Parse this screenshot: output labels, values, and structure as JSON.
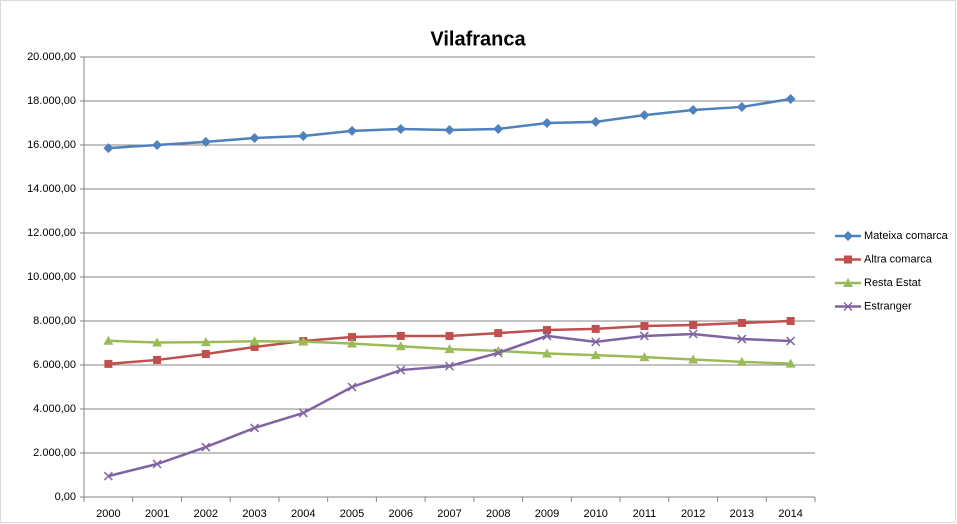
{
  "chart_data": {
    "type": "line",
    "title": "Vilafranca",
    "categories": [
      "2000",
      "2001",
      "2002",
      "2003",
      "2004",
      "2005",
      "2006",
      "2007",
      "2008",
      "2009",
      "2010",
      "2011",
      "2012",
      "2013",
      "2014"
    ],
    "series": [
      {
        "name": "Mateixa comarca",
        "color": "#4f81bd",
        "marker": "diamond",
        "values": [
          15860,
          16000,
          16140,
          16320,
          16410,
          16640,
          16730,
          16680,
          16730,
          17000,
          17050,
          17360,
          17590,
          17730,
          18090
        ]
      },
      {
        "name": "Altra comarca",
        "color": "#c0504d",
        "marker": "square",
        "values": [
          6050,
          6230,
          6500,
          6820,
          7090,
          7270,
          7320,
          7320,
          7450,
          7590,
          7640,
          7770,
          7820,
          7910,
          8000
        ]
      },
      {
        "name": "Resta Estat",
        "color": "#9bbb59",
        "marker": "triangle",
        "values": [
          7100,
          7020,
          7040,
          7080,
          7060,
          6980,
          6850,
          6720,
          6640,
          6520,
          6450,
          6360,
          6250,
          6140,
          6060
        ]
      },
      {
        "name": "Estranger",
        "color": "#8064a2",
        "marker": "x",
        "values": [
          950,
          1500,
          2270,
          3140,
          3820,
          5000,
          5770,
          5950,
          6550,
          7320,
          7050,
          7320,
          7410,
          7180,
          7090
        ]
      }
    ],
    "ylim": [
      0,
      20000
    ],
    "yticks": [
      {
        "value": 0,
        "label": "0,00"
      },
      {
        "value": 2000,
        "label": "2.000,00"
      },
      {
        "value": 4000,
        "label": "4.000,00"
      },
      {
        "value": 6000,
        "label": "6.000,00"
      },
      {
        "value": 8000,
        "label": "8.000,00"
      },
      {
        "value": 10000,
        "label": "10.000,00"
      },
      {
        "value": 12000,
        "label": "12.000,00"
      },
      {
        "value": 14000,
        "label": "14.000,00"
      },
      {
        "value": 16000,
        "label": "16.000,00"
      },
      {
        "value": 18000,
        "label": "18.000,00"
      },
      {
        "value": 20000,
        "label": "20.000,00"
      }
    ],
    "grid": true,
    "legend": "right"
  }
}
